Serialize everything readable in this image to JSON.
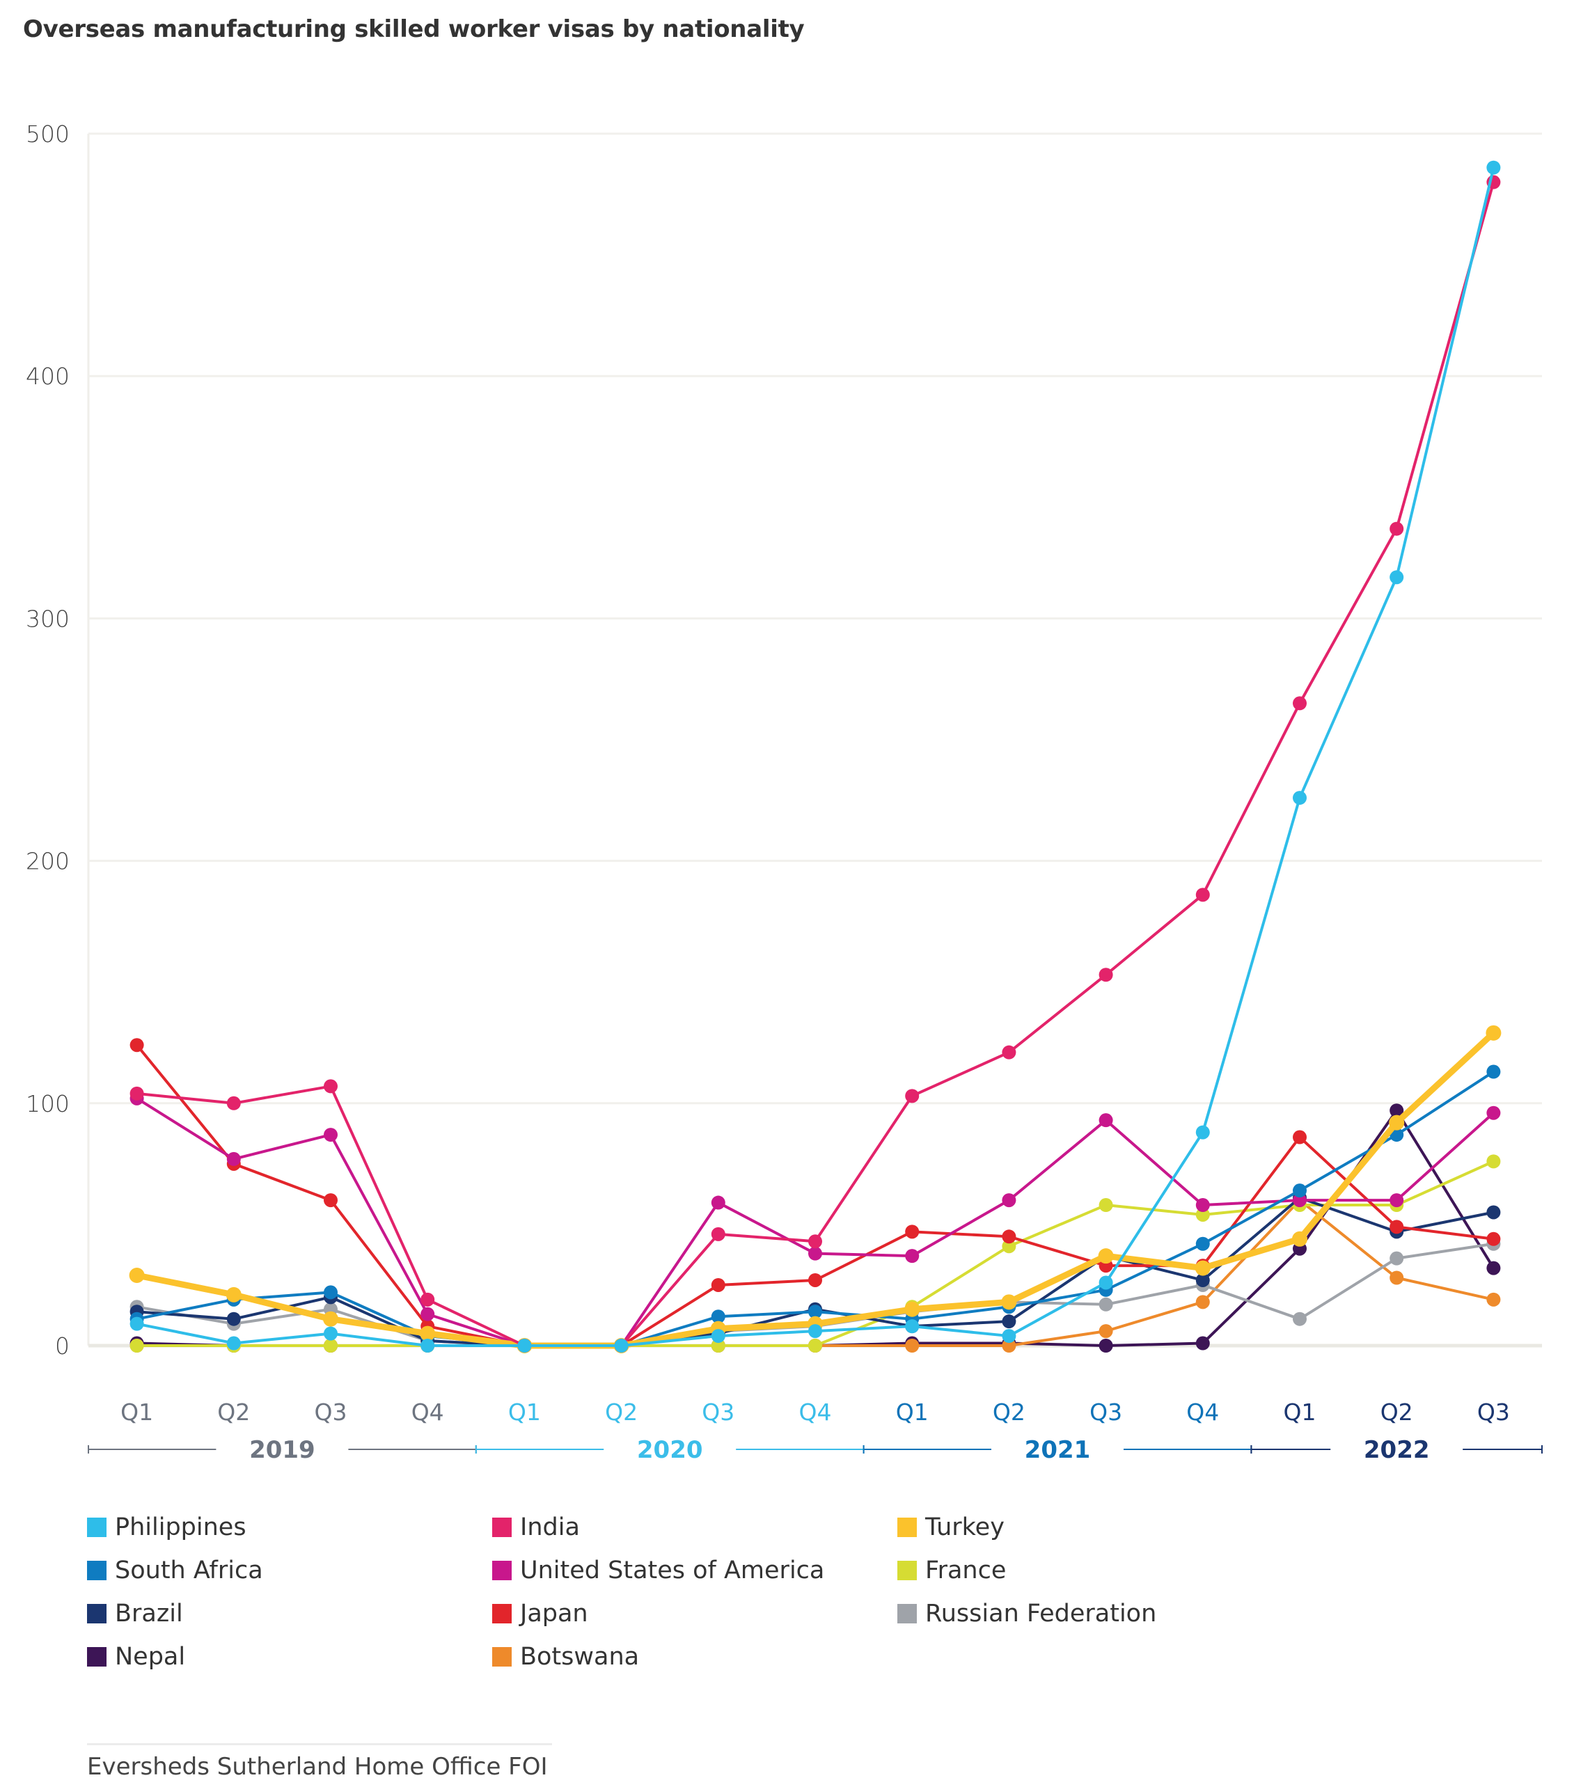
{
  "title": "Overseas manufacturing skilled worker visas by nationality",
  "source": "Eversheds Sutherland Home Office FOI",
  "chart_data": {
    "type": "line",
    "title": "Overseas manufacturing skilled worker visas by nationality",
    "xlabel": "",
    "ylabel": "",
    "ylim": [
      0,
      500
    ],
    "yticks": [
      0,
      100,
      200,
      300,
      400,
      500
    ],
    "grid": true,
    "legend_position": "bottom",
    "categories": [
      "Q1",
      "Q2",
      "Q3",
      "Q4",
      "Q1",
      "Q2",
      "Q3",
      "Q4",
      "Q1",
      "Q2",
      "Q3",
      "Q4",
      "Q1",
      "Q2",
      "Q3"
    ],
    "year_groups": [
      {
        "label": "2019",
        "start": 0,
        "end": 3,
        "color": "#6d7480"
      },
      {
        "label": "2020",
        "start": 4,
        "end": 7,
        "color": "#3bbde9"
      },
      {
        "label": "2021",
        "start": 8,
        "end": 11,
        "color": "#0f73b8"
      },
      {
        "label": "2022",
        "start": 12,
        "end": 14,
        "color": "#1b3670"
      }
    ],
    "series": [
      {
        "name": "Nepal",
        "color": "#3d1556",
        "values": [
          1,
          0,
          0,
          0,
          0,
          0,
          0,
          0,
          1,
          1,
          0,
          1,
          40,
          97,
          32
        ]
      },
      {
        "name": "Botswana",
        "color": "#ee8a2b",
        "values": [
          0,
          0,
          0,
          0,
          0,
          0,
          0,
          0,
          0,
          0,
          6,
          18,
          60,
          28,
          19
        ]
      },
      {
        "name": "Russian Federation",
        "color": "#9fa3a9",
        "values": [
          16,
          9,
          15,
          2,
          0,
          0,
          6,
          8,
          14,
          18,
          17,
          25,
          11,
          36,
          42
        ]
      },
      {
        "name": "France",
        "color": "#d6dc33",
        "values": [
          0,
          0,
          0,
          0,
          0,
          0,
          0,
          0,
          16,
          41,
          58,
          54,
          58,
          58,
          76
        ]
      },
      {
        "name": "Brazil",
        "color": "#1b3670",
        "values": [
          14,
          11,
          20,
          2,
          0,
          0,
          5,
          15,
          8,
          10,
          37,
          27,
          61,
          47,
          55
        ]
      },
      {
        "name": "Japan",
        "color": "#e2252b",
        "values": [
          124,
          75,
          60,
          8,
          0,
          0,
          25,
          27,
          47,
          45,
          33,
          33,
          86,
          49,
          44
        ]
      },
      {
        "name": "United States of America",
        "color": "#c8178c",
        "values": [
          102,
          77,
          87,
          13,
          0,
          0,
          59,
          38,
          37,
          60,
          93,
          58,
          60,
          60,
          96
        ]
      },
      {
        "name": "South Africa",
        "color": "#0f7cc1",
        "values": [
          11,
          19,
          22,
          4,
          0,
          0,
          12,
          14,
          11,
          16,
          23,
          42,
          64,
          87,
          113
        ]
      },
      {
        "name": "Turkey",
        "color": "#fbc22c",
        "values": [
          29,
          21,
          11,
          5,
          0,
          0,
          7,
          9,
          15,
          18,
          37,
          32,
          44,
          92,
          129
        ],
        "thick": true
      },
      {
        "name": "India",
        "color": "#e3236a",
        "values": [
          104,
          100,
          107,
          19,
          0,
          0,
          46,
          43,
          103,
          121,
          153,
          186,
          265,
          337,
          480
        ]
      },
      {
        "name": "Philippines",
        "color": "#2ebde9",
        "values": [
          9,
          1,
          5,
          0,
          0,
          0,
          4,
          6,
          8,
          4,
          26,
          88,
          226,
          317,
          486
        ]
      }
    ]
  },
  "legend": [
    {
      "name": "Philippines",
      "color": "#2ebde9"
    },
    {
      "name": "India",
      "color": "#e3236a"
    },
    {
      "name": "Turkey",
      "color": "#fbc22c"
    },
    {
      "name": "South Africa",
      "color": "#0f7cc1"
    },
    {
      "name": "United States of America",
      "color": "#c8178c"
    },
    {
      "name": "France",
      "color": "#d6dc33"
    },
    {
      "name": "Brazil",
      "color": "#1b3670"
    },
    {
      "name": "Japan",
      "color": "#e2252b"
    },
    {
      "name": "Russian Federation",
      "color": "#9fa3a9"
    },
    {
      "name": "Nepal",
      "color": "#3d1556"
    },
    {
      "name": "Botswana",
      "color": "#ee8a2b"
    }
  ]
}
